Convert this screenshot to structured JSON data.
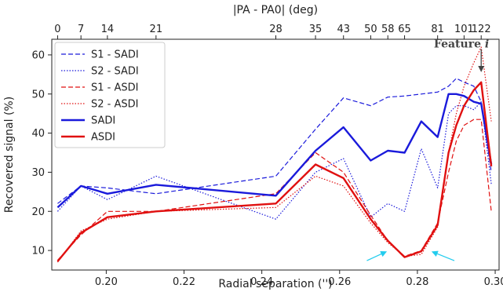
{
  "chart_data": {
    "type": "line",
    "xlabel": "Radial separation ('')",
    "ylabel": "Recovered signal (%)",
    "top_xlabel": "|PA - PA0| (deg)",
    "xlim": [
      0.186,
      0.301
    ],
    "ylim": [
      5,
      64
    ],
    "x_ticks": [
      0.2,
      0.22,
      0.24,
      0.26,
      0.28,
      0.3
    ],
    "x_tick_labels": [
      "0.20",
      "0.22",
      "0.24",
      "0.26",
      "0.28",
      "0.30"
    ],
    "y_ticks": [
      10,
      20,
      30,
      40,
      50,
      60
    ],
    "y_tick_labels": [
      "10",
      "20",
      "30",
      "40",
      "50",
      "60"
    ],
    "top_ticks": [
      {
        "x": 0.1875,
        "label": "0"
      },
      {
        "x": 0.1935,
        "label": "7"
      },
      {
        "x": 0.2003,
        "label": "14"
      },
      {
        "x": 0.2128,
        "label": "21"
      },
      {
        "x": 0.2436,
        "label": "28"
      },
      {
        "x": 0.2538,
        "label": "35"
      },
      {
        "x": 0.261,
        "label": "43"
      },
      {
        "x": 0.268,
        "label": "50"
      },
      {
        "x": 0.2724,
        "label": "58"
      },
      {
        "x": 0.2767,
        "label": "65"
      },
      {
        "x": 0.2852,
        "label": "81"
      },
      {
        "x": 0.292,
        "label": "101"
      },
      {
        "x": 0.2964,
        "label": "122"
      }
    ],
    "legend_position": "top-left",
    "grid": false,
    "series": [
      {
        "name": "S1 - SADI",
        "color": "#1a1adb",
        "style": "dashed",
        "width": 1.2,
        "x": [
          0.1875,
          0.1935,
          0.2003,
          0.2128,
          0.2436,
          0.2538,
          0.261,
          0.268,
          0.2724,
          0.2767,
          0.281,
          0.2852,
          0.288,
          0.29,
          0.292,
          0.2945,
          0.2964,
          0.299
        ],
        "y": [
          22,
          26.5,
          26,
          24.5,
          29,
          41,
          49,
          47,
          49.2,
          49.5,
          50,
          50.5,
          52,
          54,
          53,
          52,
          48,
          30
        ]
      },
      {
        "name": "S2 - SADI",
        "color": "#1a1adb",
        "style": "dotted",
        "width": 1.2,
        "x": [
          0.1875,
          0.1935,
          0.2003,
          0.2128,
          0.2436,
          0.2538,
          0.261,
          0.268,
          0.2724,
          0.2767,
          0.281,
          0.2852,
          0.288,
          0.29,
          0.292,
          0.2945,
          0.2964,
          0.299
        ],
        "y": [
          20,
          26.5,
          23,
          29,
          18,
          30,
          33.5,
          18.5,
          22,
          20,
          36,
          26,
          45,
          47,
          47,
          46,
          48,
          27
        ]
      },
      {
        "name": "S1 - ASDI",
        "color": "#e01010",
        "style": "dashed",
        "width": 1.2,
        "x": [
          0.1875,
          0.1935,
          0.2003,
          0.2128,
          0.2436,
          0.2538,
          0.261,
          0.268,
          0.2724,
          0.2767,
          0.281,
          0.2852,
          0.288,
          0.29,
          0.292,
          0.2945,
          0.2964,
          0.299
        ],
        "y": [
          7.5,
          14,
          20,
          20,
          24.5,
          35,
          30,
          19,
          12.5,
          8.5,
          10,
          17,
          30,
          38,
          42,
          43.5,
          43.5,
          20
        ]
      },
      {
        "name": "S2 - ASDI",
        "color": "#e01010",
        "style": "dotted",
        "width": 1.2,
        "x": [
          0.1875,
          0.1935,
          0.2003,
          0.2128,
          0.2436,
          0.2538,
          0.261,
          0.268,
          0.2724,
          0.2767,
          0.281,
          0.2852,
          0.288,
          0.29,
          0.292,
          0.2945,
          0.2964,
          0.299
        ],
        "y": [
          7,
          15,
          18,
          20,
          21,
          29,
          26.5,
          17,
          12,
          8.5,
          9,
          16,
          35,
          45,
          52,
          58,
          62,
          43
        ]
      },
      {
        "name": "SADI",
        "color": "#1a1adb",
        "style": "solid",
        "width": 2.4,
        "x": [
          0.1875,
          0.1935,
          0.2003,
          0.2128,
          0.2436,
          0.2538,
          0.261,
          0.268,
          0.2724,
          0.2767,
          0.281,
          0.2852,
          0.288,
          0.29,
          0.292,
          0.2945,
          0.2964,
          0.299
        ],
        "y": [
          21,
          26.5,
          24.5,
          26.8,
          24,
          35.5,
          41.5,
          33,
          35.5,
          35,
          43,
          39,
          50,
          50,
          49.5,
          48,
          47.5,
          32
        ]
      },
      {
        "name": "ASDI",
        "color": "#e01010",
        "style": "solid",
        "width": 2.4,
        "x": [
          0.1875,
          0.1935,
          0.2003,
          0.2128,
          0.2436,
          0.2538,
          0.261,
          0.268,
          0.2724,
          0.2767,
          0.281,
          0.2852,
          0.288,
          0.29,
          0.292,
          0.2945,
          0.2964,
          0.299
        ],
        "y": [
          7.2,
          14.5,
          18.5,
          20,
          22,
          32,
          28.5,
          18,
          12.5,
          8.3,
          9.8,
          16.5,
          35,
          42,
          47,
          51,
          53,
          31.5
        ]
      }
    ],
    "annotations": [
      {
        "text": "Feature i",
        "kind": "text-with-arrow",
        "arrow_from": [
          0.2964,
          61.5
        ],
        "arrow_to": [
          0.2964,
          56
        ],
        "color": "#444444"
      },
      {
        "text": "",
        "kind": "arrow",
        "arrow_from": [
          0.267,
          7.4
        ],
        "arrow_to": [
          0.2718,
          9.6
        ],
        "color": "#22ccee"
      },
      {
        "text": "",
        "kind": "arrow",
        "arrow_from": [
          0.2895,
          7.4
        ],
        "arrow_to": [
          0.284,
          9.6
        ],
        "color": "#22ccee"
      }
    ]
  }
}
